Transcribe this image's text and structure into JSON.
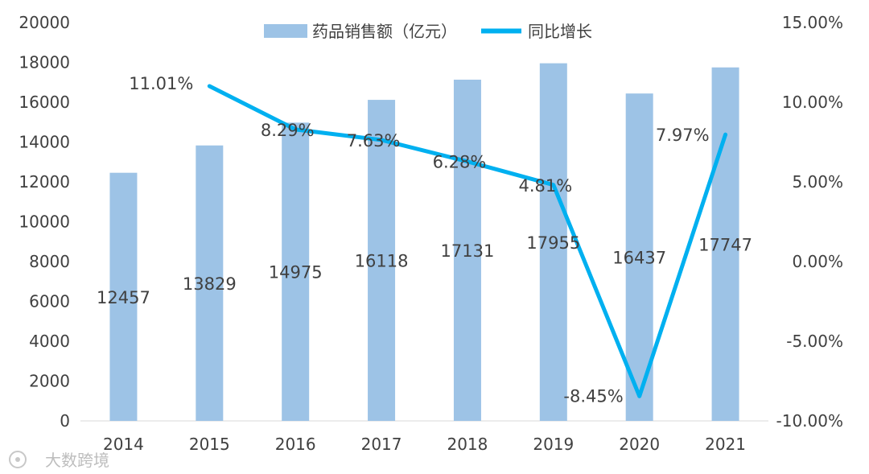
{
  "chart_data": {
    "type": "bar+line",
    "categories": [
      "2014",
      "2015",
      "2016",
      "2017",
      "2018",
      "2019",
      "2020",
      "2021"
    ],
    "series": [
      {
        "name": "药品销售额（亿元）",
        "type": "bar",
        "axis": "left",
        "values": [
          12457,
          13829,
          14975,
          16118,
          17131,
          17955,
          16437,
          17747
        ],
        "labels": [
          "12457",
          "13829",
          "14975",
          "16118",
          "17131",
          "17955",
          "16437",
          "17747"
        ],
        "color": "#9dc3e6"
      },
      {
        "name": "同比增长",
        "type": "line",
        "axis": "right",
        "values": [
          null,
          11.01,
          8.29,
          7.63,
          6.28,
          4.81,
          -8.45,
          7.97
        ],
        "labels": [
          "",
          "11.01%",
          "8.29%",
          "7.63%",
          "6.28%",
          "4.81%",
          "-8.45%",
          "7.97%"
        ],
        "color": "#00b0f0"
      }
    ],
    "y_left": {
      "ylim": [
        0,
        20000
      ],
      "ticks": [
        "0",
        "2000",
        "4000",
        "6000",
        "8000",
        "10000",
        "12000",
        "14000",
        "16000",
        "18000",
        "20000"
      ]
    },
    "y_right": {
      "ylim": [
        -10,
        15
      ],
      "ticks": [
        "-10.00%",
        "-5.00%",
        "0.00%",
        "5.00%",
        "10.00%",
        "15.00%"
      ]
    },
    "legend_position": "top-center",
    "grid": false
  },
  "watermark": {
    "text": "大数跨境"
  }
}
